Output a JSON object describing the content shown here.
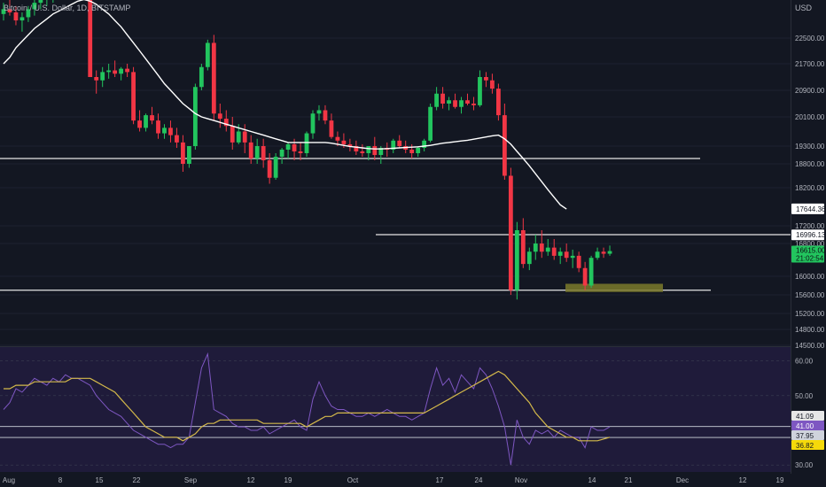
{
  "header": {
    "title": "Bitcoin / U.S. Dollar, 1D, BITSTAMP",
    "currency": "USD"
  },
  "colors": {
    "bg": "#131722",
    "up": "#22c55e",
    "down": "#f23645",
    "ma": "#ffffff",
    "rsi": "#7e57c2",
    "rsi_ma": "#d4b94a",
    "rsi_band": "#1f1b3a",
    "zone": "#7b7a2a",
    "axis_text": "#b2b5be"
  },
  "chart_data": [
    {
      "type": "candlestick",
      "title": "Bitcoin / U.S. Dollar, 1D, BITSTAMP",
      "ylabel": "USD",
      "y_ticks": [
        22500,
        21700,
        20900,
        20100,
        19300,
        18800,
        18200,
        17200,
        16800,
        16000,
        15600,
        15200,
        14800,
        14500
      ],
      "y_tick_labels": [
        "22500.00",
        "21700.00",
        "20900.00",
        "20100.00",
        "19300.00",
        "18800.00",
        "18200.00",
        "17200.00",
        "16800.00",
        "16000.00",
        "15600.00",
        "15200.00",
        "14800.00",
        "14500.00"
      ],
      "x_tick_labels": [
        "Aug",
        "8",
        "15",
        "22",
        "Sep",
        "12",
        "19",
        "Oct",
        "17",
        "24",
        "Nov",
        "14",
        "21",
        "Dec",
        "12",
        "19"
      ],
      "series": [
        {
          "name": "BTCUSD",
          "kind": "ohlc",
          "values": [
            [
              23250,
              23600,
              23050,
              23400
            ],
            [
              23400,
              23700,
              23200,
              23300
            ],
            [
              23300,
              23500,
              22900,
              23050
            ],
            [
              23050,
              23300,
              22700,
              23150
            ],
            [
              23150,
              23500,
              23000,
              23400
            ],
            [
              23400,
              23800,
              23200,
              23600
            ],
            [
              23600,
              23900,
              23400,
              23700
            ],
            [
              23700,
              24000,
              23500,
              23800
            ],
            [
              23800,
              24200,
              23600,
              24050
            ],
            [
              24050,
              24300,
              23800,
              23950
            ],
            [
              23950,
              24200,
              23700,
              24100
            ],
            [
              24100,
              24500,
              23900,
              24300
            ],
            [
              24300,
              24600,
              24100,
              24200
            ],
            [
              24200,
              24400,
              23800,
              23850
            ],
            [
              23850,
              24000,
              22800,
              21300
            ],
            [
              21300,
              21500,
              20800,
              21200
            ],
            [
              21200,
              21600,
              21000,
              21450
            ],
            [
              21450,
              21700,
              21250,
              21500
            ],
            [
              21500,
              21800,
              21300,
              21400
            ],
            [
              21400,
              21600,
              21200,
              21550
            ],
            [
              21550,
              21700,
              21300,
              21450
            ],
            [
              21450,
              21600,
              19900,
              20000
            ],
            [
              20000,
              20300,
              19700,
              19800
            ],
            [
              19800,
              20200,
              19700,
              20150
            ],
            [
              20150,
              20400,
              19900,
              20000
            ],
            [
              20000,
              20200,
              19500,
              19650
            ],
            [
              19650,
              19900,
              19500,
              19800
            ],
            [
              19800,
              20000,
              19400,
              19600
            ],
            [
              19600,
              19800,
              19250,
              19400
            ],
            [
              19400,
              19600,
              18600,
              18800
            ],
            [
              18800,
              19300,
              18700,
              19300
            ],
            [
              19300,
              21100,
              19200,
              21000
            ],
            [
              21000,
              21700,
              20900,
              21600
            ],
            [
              21600,
              22450,
              21500,
              22350
            ],
            [
              22350,
              22600,
              20000,
              20200
            ],
            [
              20200,
              20500,
              19800,
              20050
            ],
            [
              20050,
              20300,
              19700,
              19850
            ],
            [
              19850,
              20100,
              19200,
              19400
            ],
            [
              19400,
              19900,
              19350,
              19700
            ],
            [
              19700,
              19900,
              19100,
              19400
            ],
            [
              19400,
              19600,
              18800,
              18950
            ],
            [
              18950,
              19500,
              18800,
              19300
            ],
            [
              19300,
              19500,
              18700,
              18900
            ],
            [
              18900,
              19100,
              18300,
              18450
            ],
            [
              18450,
              19100,
              18400,
              19000
            ],
            [
              19000,
              19250,
              18800,
              19200
            ],
            [
              19200,
              19400,
              18950,
              19350
            ],
            [
              19350,
              19500,
              18900,
              19150
            ],
            [
              19150,
              19400,
              18900,
              19100
            ],
            [
              19100,
              19700,
              19000,
              19650
            ],
            [
              19650,
              20300,
              19500,
              20200
            ],
            [
              20200,
              20450,
              20000,
              20300
            ],
            [
              20300,
              20450,
              19900,
              20000
            ],
            [
              20000,
              20200,
              19500,
              19550
            ],
            [
              19550,
              19700,
              19300,
              19450
            ],
            [
              19450,
              19650,
              19250,
              19350
            ],
            [
              19350,
              19500,
              19150,
              19300
            ],
            [
              19300,
              19450,
              19050,
              19150
            ],
            [
              19150,
              19350,
              19000,
              19100
            ],
            [
              19100,
              19300,
              18900,
              19300
            ],
            [
              19300,
              19550,
              18900,
              19050
            ],
            [
              19050,
              19300,
              18800,
              19250
            ],
            [
              19250,
              19400,
              19000,
              19200
            ],
            [
              19200,
              19500,
              19100,
              19450
            ],
            [
              19450,
              19600,
              19250,
              19300
            ],
            [
              19300,
              19450,
              19100,
              19200
            ],
            [
              19200,
              19350,
              18950,
              19100
            ],
            [
              19100,
              19300,
              19000,
              19250
            ],
            [
              19250,
              19500,
              19150,
              19450
            ],
            [
              19450,
              20500,
              19400,
              20400
            ],
            [
              20400,
              21000,
              20300,
              20800
            ],
            [
              20800,
              21000,
              20350,
              20500
            ],
            [
              20500,
              20700,
              20300,
              20600
            ],
            [
              20600,
              20800,
              20350,
              20400
            ],
            [
              20400,
              20700,
              20200,
              20600
            ],
            [
              20600,
              20800,
              20450,
              20500
            ],
            [
              20500,
              20700,
              20300,
              20450
            ],
            [
              20450,
              21500,
              20400,
              21300
            ],
            [
              21300,
              21450,
              21000,
              21200
            ],
            [
              21200,
              21400,
              20800,
              20950
            ],
            [
              20950,
              21100,
              20000,
              20150
            ],
            [
              20150,
              20500,
              18400,
              18500
            ],
            [
              18500,
              18700,
              15600,
              15700
            ],
            [
              15700,
              17300,
              15500,
              17100
            ],
            [
              17100,
              17400,
              16200,
              16300
            ],
            [
              16300,
              16700,
              16150,
              16600
            ],
            [
              16600,
              17000,
              16400,
              16800
            ],
            [
              16800,
              17100,
              16450,
              16600
            ],
            [
              16600,
              16900,
              16500,
              16700
            ],
            [
              16700,
              16900,
              16400,
              16500
            ],
            [
              16500,
              16700,
              16300,
              16600
            ],
            [
              16600,
              16800,
              16350,
              16450
            ],
            [
              16450,
              16650,
              16200,
              16500
            ],
            [
              16500,
              16600,
              16100,
              16200
            ],
            [
              16200,
              16350,
              15700,
              15800
            ],
            [
              15800,
              16500,
              15750,
              16450
            ],
            [
              16450,
              16700,
              16400,
              16600
            ],
            [
              16600,
              16700,
              16450,
              16550
            ],
            [
              16550,
              16750,
              16500,
              16615
            ]
          ]
        },
        {
          "name": "MA",
          "kind": "line",
          "values": [
            21700,
            21900,
            22200,
            22400,
            22600,
            22800,
            22950,
            23100,
            23250,
            23350,
            23450,
            23550,
            23650,
            23700,
            23650,
            23550,
            23400,
            23250,
            23050,
            22850,
            22600,
            22350,
            22100,
            21850,
            21600,
            21350,
            21100,
            20900,
            20700,
            20500,
            20350,
            20200,
            20100,
            20050,
            20000,
            19950,
            19900,
            19850,
            19800,
            19750,
            19700,
            19650,
            19600,
            19550,
            19500,
            19450,
            19400,
            19400,
            19400,
            19400,
            19400,
            19400,
            19400,
            19380,
            19350,
            19320,
            19290,
            19270,
            19250,
            19230,
            19220,
            19220,
            19230,
            19240,
            19250,
            19260,
            19270,
            19280,
            19300,
            19320,
            19350,
            19380,
            19400,
            19420,
            19440,
            19460,
            19490,
            19520,
            19550,
            19580,
            19600,
            19500,
            19350,
            19150,
            18950,
            18750,
            18550,
            18350,
            18150,
            17950,
            17750,
            17640
          ]
        }
      ],
      "horizontal_levels": [
        18950,
        17000,
        15700
      ],
      "support_zone": [
        15700,
        15800
      ],
      "price_labels": [
        {
          "value": 17644.36,
          "text": "17644.36"
        },
        {
          "value": 16996.13,
          "text": "16996.13"
        },
        {
          "value": 16615.0,
          "text": "16615.00",
          "sub": "21:02:54"
        }
      ]
    },
    {
      "type": "line",
      "title": "",
      "ylabel": "",
      "ylim": [
        28,
        64
      ],
      "y_ticks": [
        60,
        50,
        30
      ],
      "y_tick_labels": [
        "60.00",
        "50.00",
        "30.00"
      ],
      "hlines": [
        41.09,
        37.95
      ],
      "series": [
        {
          "name": "RSI",
          "values": [
            46,
            48,
            52,
            51,
            53,
            55,
            54,
            53,
            55,
            54,
            56,
            55,
            55,
            54,
            53,
            50,
            48,
            46,
            45,
            44,
            42,
            40,
            39,
            38,
            37,
            36,
            36,
            35,
            36,
            36,
            38,
            48,
            58,
            62,
            46,
            45,
            44,
            42,
            41,
            41,
            40,
            40,
            41,
            39,
            40,
            41,
            42,
            43,
            41,
            40,
            49,
            54,
            50,
            47,
            46,
            46,
            45,
            44,
            44,
            45,
            44,
            45,
            46,
            45,
            44,
            44,
            43,
            44,
            45,
            52,
            58,
            53,
            55,
            51,
            56,
            54,
            52,
            58,
            56,
            52,
            47,
            41,
            30,
            43,
            38,
            36,
            40,
            39,
            40,
            38,
            40,
            39,
            38,
            38,
            35,
            41,
            40,
            40,
            41
          ]
        },
        {
          "name": "RSI-based MA",
          "values": [
            52,
            52,
            53,
            53,
            53,
            54,
            54,
            54,
            54,
            54,
            54,
            55,
            55,
            55,
            55,
            54,
            53,
            52,
            51,
            49,
            47,
            45,
            43,
            41,
            40,
            39,
            38,
            38,
            38,
            37,
            38,
            39,
            41,
            42,
            42,
            43,
            43,
            43,
            43,
            43,
            43,
            43,
            42,
            42,
            42,
            42,
            42,
            42,
            42,
            41,
            42,
            43,
            44,
            44,
            45,
            45,
            45,
            45,
            45,
            45,
            45,
            45,
            45,
            45,
            45,
            45,
            45,
            45,
            45,
            46,
            47,
            48,
            49,
            50,
            51,
            52,
            53,
            54,
            55,
            56,
            57,
            56,
            54,
            52,
            50,
            48,
            45,
            43,
            41,
            40,
            39,
            38,
            38,
            37,
            37,
            37,
            37,
            37.5,
            38
          ]
        }
      ],
      "value_labels": [
        "41.09",
        "41.00",
        "37.95",
        "36.82"
      ]
    }
  ]
}
